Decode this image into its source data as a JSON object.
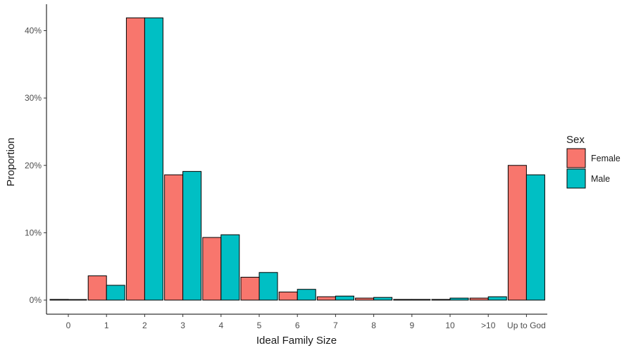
{
  "chart_data": {
    "type": "bar",
    "xlabel": "Ideal Family Size",
    "ylabel": "Proportion",
    "categories": [
      "0",
      "1",
      "2",
      "3",
      "4",
      "5",
      "6",
      "7",
      "8",
      "9",
      "10",
      ">10",
      "Up to God"
    ],
    "series": [
      {
        "name": "Female",
        "color": "#F8766D",
        "values": [
          0.1,
          3.6,
          41.9,
          18.6,
          9.3,
          3.4,
          1.2,
          0.5,
          0.3,
          0.1,
          0.1,
          0.3,
          20.0
        ]
      },
      {
        "name": "Male",
        "color": "#00BFC4",
        "values": [
          0.0,
          2.2,
          41.9,
          19.1,
          9.7,
          4.1,
          1.6,
          0.6,
          0.4,
          0.1,
          0.3,
          0.5,
          18.6
        ]
      }
    ],
    "ylim": [
      0,
      43.5
    ],
    "yticks": [
      0,
      10,
      20,
      30,
      40
    ],
    "ytick_labels": [
      "0%",
      "10%",
      "20%",
      "30%",
      "40%"
    ],
    "grid": false,
    "legend": {
      "title": "Sex",
      "placement": "right"
    }
  }
}
